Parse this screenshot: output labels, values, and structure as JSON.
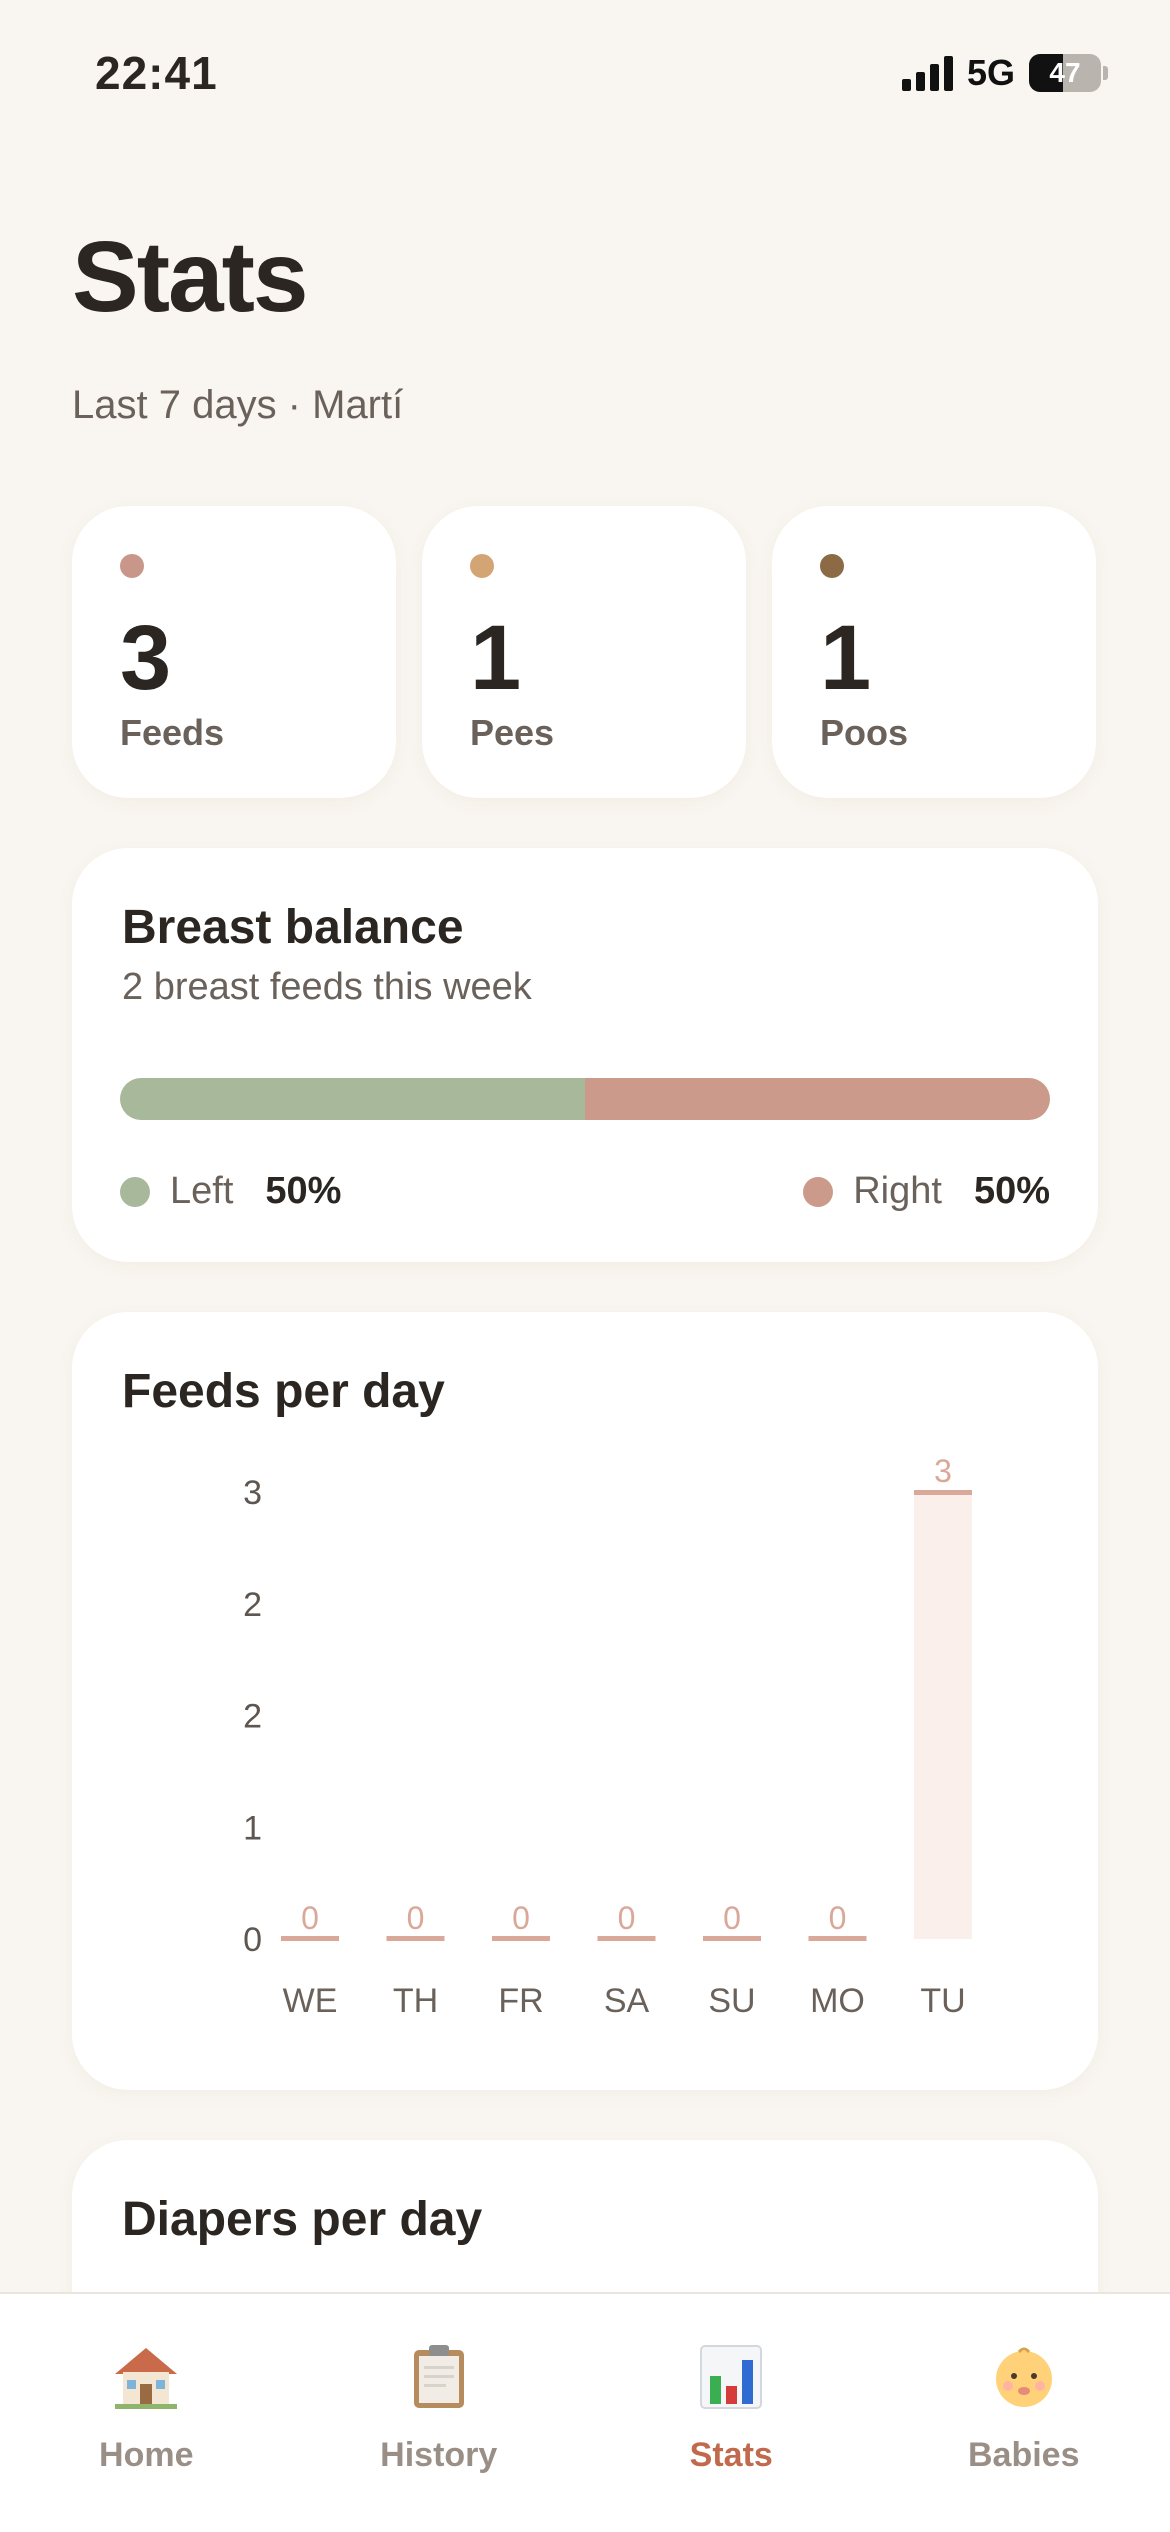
{
  "status_bar": {
    "time": "22:41",
    "network": "5G",
    "battery": "47",
    "battery_level": 0.47
  },
  "header": {
    "title": "Stats",
    "subtitle": "Last 7 days · Martí"
  },
  "summary": [
    {
      "value": "3",
      "label": "Feeds",
      "color": "#c8978a"
    },
    {
      "value": "1",
      "label": "Pees",
      "color": "#d4a574"
    },
    {
      "value": "1",
      "label": "Poos",
      "color": "#8b6a45"
    }
  ],
  "breast_balance": {
    "title": "Breast balance",
    "subtitle": "2 breast feeds this week",
    "left_label": "Left",
    "left_value": "50%",
    "left_fraction": 0.5,
    "left_color": "#a8b89a",
    "right_label": "Right",
    "right_value": "50%",
    "right_color": "#cb9a8b"
  },
  "feeds_chart": {
    "title": "Feeds per day"
  },
  "diapers_chart": {
    "title": "Diapers per day"
  },
  "chart_data": {
    "type": "bar",
    "title": "Feeds per day",
    "categories": [
      "WE",
      "TH",
      "FR",
      "SA",
      "SU",
      "MO",
      "TU"
    ],
    "values": [
      0,
      0,
      0,
      0,
      0,
      0,
      3
    ],
    "value_labels": [
      "0",
      "0",
      "0",
      "0",
      "0",
      "0",
      "3"
    ],
    "y_tick_labels": [
      "0",
      "1",
      "2",
      "2",
      "3"
    ],
    "ylim": [
      0,
      3
    ],
    "grid": false,
    "bar_color": "#d9a899"
  },
  "tabs": [
    {
      "label": "Home",
      "icon": "house-icon",
      "active": false
    },
    {
      "label": "History",
      "icon": "clipboard-icon",
      "active": false
    },
    {
      "label": "Stats",
      "icon": "bar-chart-icon",
      "active": true
    },
    {
      "label": "Babies",
      "icon": "baby-icon",
      "active": false
    }
  ]
}
